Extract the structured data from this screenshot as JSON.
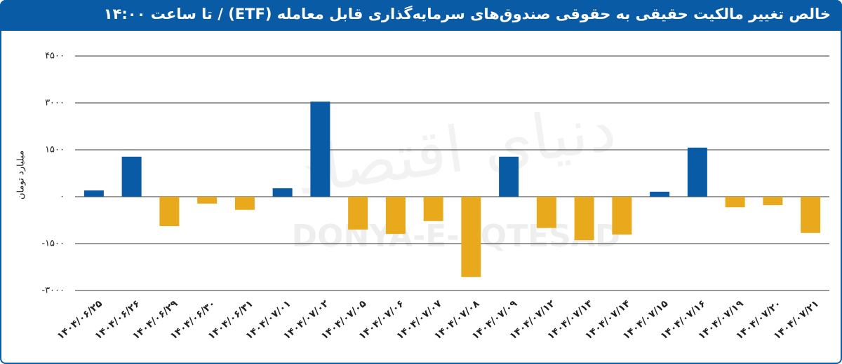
{
  "chart_data": {
    "type": "bar",
    "title": "خالص تغییر مالکیت حقیقی به حقوقی صندوق‌های سرمایه‌گذاری قابل معامله (ETF) / تا ساعت ۱۴:۰۰",
    "y_label": "میلیارد تومان",
    "watermark": "DONYA-E-EQTESAD",
    "watermark_fa": "دنیای اقتصاد",
    "categories": [
      "۱۴۰۴/۰۶/۲۵",
      "۱۴۰۴/۰۶/۲۶",
      "۱۴۰۴/۰۶/۲۹",
      "۱۴۰۴/۰۶/۳۰",
      "۱۴۰۴/۰۶/۳۱",
      "۱۴۰۴/۰۷/۰۱",
      "۱۴۰۴/۰۷/۰۲",
      "۱۴۰۴/۰۷/۰۵",
      "۱۴۰۴/۰۷/۰۶",
      "۱۴۰۴/۰۷/۰۷",
      "۱۴۰۴/۰۷/۰۸",
      "۱۴۰۴/۰۷/۰۹",
      "۱۴۰۴/۰۷/۱۲",
      "۱۴۰۴/۰۷/۱۳",
      "۱۴۰۴/۰۷/۱۴",
      "۱۴۰۴/۰۷/۱۵",
      "۱۴۰۴/۰۷/۱۶",
      "۱۴۰۴/۰۷/۱۹",
      "۱۴۰۴/۰۷/۲۰",
      "۱۴۰۴/۰۷/۲۱"
    ],
    "values": [
      200,
      1280,
      -940,
      -220,
      -420,
      270,
      3040,
      -1050,
      -1190,
      -780,
      -2570,
      1280,
      -1000,
      -1390,
      -1210,
      160,
      1570,
      -340,
      -270,
      -1160
    ],
    "positive_color": "#0a5ba6",
    "negative_color": "#e8a91c",
    "ylim": [
      -3000,
      4500
    ],
    "yticks": [
      {
        "value": 4500,
        "label": "۴۵۰۰"
      },
      {
        "value": 3000,
        "label": "۳۰۰۰"
      },
      {
        "value": 1500,
        "label": "۱۵۰۰"
      },
      {
        "value": 0,
        "label": "۰"
      },
      {
        "value": -1500,
        "label": "-۱۵۰۰"
      },
      {
        "value": -3000,
        "label": "-۳۰۰۰"
      }
    ],
    "grid": true
  }
}
